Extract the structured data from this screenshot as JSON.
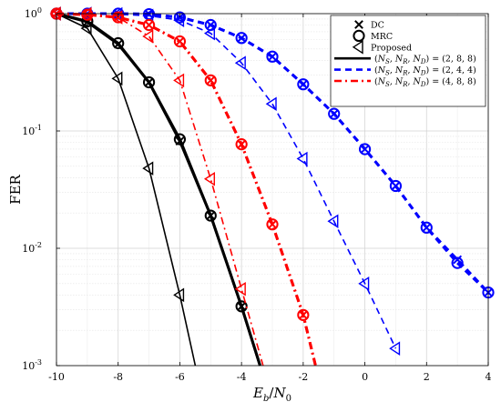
{
  "chart_data": {
    "type": "line",
    "xlabel": "E_b/N_0",
    "ylabel": "FER",
    "xlim": [
      -10,
      4
    ],
    "ylim": [
      0.001,
      1
    ],
    "yscale": "log",
    "grid": true,
    "legend_position": "top-right",
    "x_ticks": [
      "-10",
      "-8",
      "-6",
      "-4",
      "-2",
      "0",
      "2",
      "4"
    ],
    "y_ticks": [
      {
        "base": "10",
        "exp": "0",
        "value": 1
      },
      {
        "base": "10",
        "exp": "-1",
        "value": 0.1
      },
      {
        "base": "10",
        "exp": "-2",
        "value": 0.01
      },
      {
        "base": "10",
        "exp": "-3",
        "value": 0.001
      }
    ],
    "legend": {
      "markers": [
        {
          "label": "DC",
          "marker": "x"
        },
        {
          "label": "MRC",
          "marker": "o"
        },
        {
          "label": "Proposed",
          "marker": "triangle"
        }
      ],
      "configs": [
        {
          "label": "(N_S, N_R, N_D) = (2, 8, 8)",
          "color": "#000000",
          "dash": "solid"
        },
        {
          "label": "(N_S, N_R, N_D) = (2, 4, 4)",
          "color": "#0000ff",
          "dash": "dashed"
        },
        {
          "label": "(N_S, N_R, N_D) = (4, 8, 8)",
          "color": "#ff0000",
          "dash": "dashdot"
        }
      ]
    },
    "series": [
      {
        "config": "(N_S, N_R, N_D) = (2, 8, 8)",
        "scheme": "DC",
        "color": "#000000",
        "dash": "solid",
        "marker": "x",
        "width": 3,
        "x": [
          -10,
          -9,
          -8,
          -7,
          -6,
          -5,
          -4,
          -3.4
        ],
        "y": [
          1,
          0.85,
          0.55,
          0.26,
          0.082,
          0.019,
          0.0032,
          0.001
        ]
      },
      {
        "config": "(N_S, N_R, N_D) = (2, 8, 8)",
        "scheme": "MRC",
        "color": "#000000",
        "dash": "solid",
        "marker": "o",
        "width": 3,
        "x": [
          -10,
          -9,
          -8,
          -7,
          -6,
          -5,
          -4,
          -3.4
        ],
        "y": [
          1,
          0.86,
          0.56,
          0.26,
          0.085,
          0.019,
          0.0032,
          0.001
        ]
      },
      {
        "config": "(N_S, N_R, N_D) = (2, 8, 8)",
        "scheme": "Proposed",
        "color": "#000000",
        "dash": "solid",
        "marker": "triangle",
        "width": 1.6,
        "x": [
          -10,
          -9,
          -8,
          -7,
          -6,
          -5.5
        ],
        "y": [
          1,
          0.75,
          0.28,
          0.048,
          0.004,
          0.001
        ]
      },
      {
        "config": "(N_S, N_R, N_D) = (2, 4, 4)",
        "scheme": "DC",
        "color": "#0000ff",
        "dash": "dashed",
        "marker": "x",
        "width": 3,
        "x": [
          -10,
          -9,
          -8,
          -7,
          -6,
          -5,
          -4,
          -3,
          -2,
          -1,
          0,
          1,
          2,
          3,
          4
        ],
        "y": [
          1,
          1,
          1,
          0.99,
          0.93,
          0.8,
          0.62,
          0.43,
          0.25,
          0.14,
          0.07,
          0.034,
          0.015,
          0.008,
          0.0042
        ]
      },
      {
        "config": "(N_S, N_R, N_D) = (2, 4, 4)",
        "scheme": "MRC",
        "color": "#0000ff",
        "dash": "dashed",
        "marker": "o",
        "width": 3,
        "x": [
          -10,
          -9,
          -8,
          -7,
          -6,
          -5,
          -4,
          -3,
          -2,
          -1,
          0,
          1,
          2,
          3,
          4
        ],
        "y": [
          1,
          1,
          1,
          0.99,
          0.93,
          0.8,
          0.62,
          0.43,
          0.25,
          0.14,
          0.07,
          0.034,
          0.015,
          0.0075,
          0.0042
        ]
      },
      {
        "config": "(N_S, N_R, N_D) = (2, 4, 4)",
        "scheme": "Proposed",
        "color": "#0000ff",
        "dash": "dashed",
        "marker": "triangle",
        "width": 1.6,
        "x": [
          -10,
          -9,
          -8,
          -7,
          -6,
          -5,
          -4,
          -3,
          -2,
          -1,
          0,
          1
        ],
        "y": [
          1,
          1,
          0.99,
          0.96,
          0.88,
          0.68,
          0.38,
          0.17,
          0.058,
          0.017,
          0.005,
          0.0014
        ]
      },
      {
        "config": "(N_S, N_R, N_D) = (4, 8, 8)",
        "scheme": "DC",
        "color": "#ff0000",
        "dash": "dashdot",
        "marker": "x",
        "width": 3,
        "x": [
          -10,
          -9,
          -8,
          -7,
          -6,
          -5,
          -4,
          -3,
          -2,
          -1.6
        ],
        "y": [
          1,
          0.98,
          0.93,
          0.8,
          0.58,
          0.27,
          0.077,
          0.016,
          0.0027,
          0.001
        ]
      },
      {
        "config": "(N_S, N_R, N_D) = (4, 8, 8)",
        "scheme": "MRC",
        "color": "#ff0000",
        "dash": "dashdot",
        "marker": "o",
        "width": 3,
        "x": [
          -10,
          -9,
          -8,
          -7,
          -6,
          -5,
          -4,
          -3,
          -2,
          -1.6
        ],
        "y": [
          1,
          0.98,
          0.93,
          0.8,
          0.58,
          0.27,
          0.077,
          0.016,
          0.0027,
          0.001
        ]
      },
      {
        "config": "(N_S, N_R, N_D) = (4, 8, 8)",
        "scheme": "Proposed",
        "color": "#ff0000",
        "dash": "dashdot",
        "marker": "triangle",
        "width": 1.6,
        "x": [
          -10,
          -9,
          -8,
          -7,
          -6,
          -5,
          -4,
          -3.3
        ],
        "y": [
          1,
          0.99,
          0.93,
          0.64,
          0.27,
          0.039,
          0.0045,
          0.001
        ]
      }
    ]
  }
}
